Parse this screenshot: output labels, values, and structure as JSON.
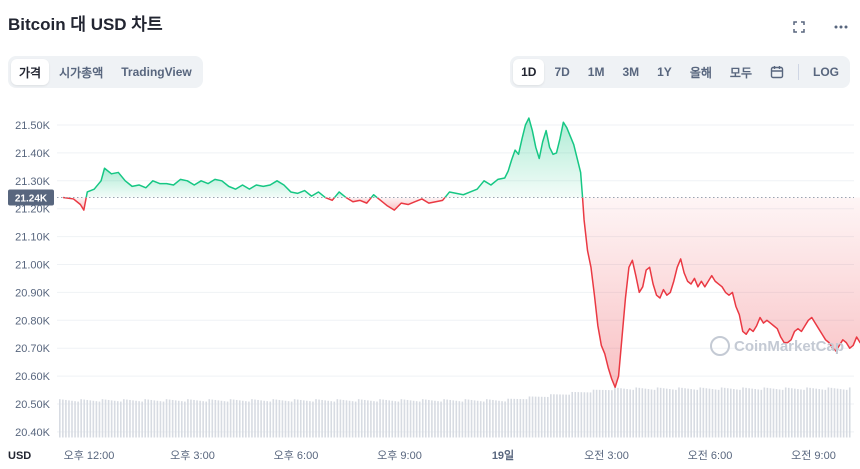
{
  "header": {
    "title": "Bitcoin 대 USD 차트",
    "icons": [
      "fullscreen-icon",
      "more-icon"
    ]
  },
  "view_tabs": [
    {
      "label": "가격",
      "active": true
    },
    {
      "label": "시가총액",
      "active": false
    },
    {
      "label": "TradingView",
      "active": false
    }
  ],
  "range_tabs": [
    {
      "label": "1D",
      "active": true
    },
    {
      "label": "7D",
      "active": false
    },
    {
      "label": "1M",
      "active": false
    },
    {
      "label": "3M",
      "active": false
    },
    {
      "label": "1Y",
      "active": false
    },
    {
      "label": "올해",
      "active": false
    },
    {
      "label": "모두",
      "active": false
    }
  ],
  "log_label": "LOG",
  "colors": {
    "up": "#16c784",
    "down": "#ea3943",
    "grid": "#eff2f5",
    "volume": "#d7dbe2",
    "label_bg": "#58667e"
  },
  "watermark": "CoinMarketCap",
  "chart_data": {
    "type": "line",
    "currency_label": "USD",
    "current_price_label": "21.24K",
    "baseline": 21240,
    "ylim": [
      20380,
      21560
    ],
    "y_ticks": [
      {
        "value": 21500,
        "label": "21.50K"
      },
      {
        "value": 21400,
        "label": "21.40K"
      },
      {
        "value": 21300,
        "label": "21.30K"
      },
      {
        "value": 21200,
        "label": "21.20K"
      },
      {
        "value": 21100,
        "label": "21.10K"
      },
      {
        "value": 21000,
        "label": "21.00K"
      },
      {
        "value": 20900,
        "label": "20.90K"
      },
      {
        "value": 20800,
        "label": "20.80K"
      },
      {
        "value": 20700,
        "label": "20.70K"
      },
      {
        "value": 20600,
        "label": "20.60K"
      },
      {
        "value": 20500,
        "label": "20.50K"
      },
      {
        "value": 20400,
        "label": "20.40K"
      }
    ],
    "xlim": [
      0,
      24.3
    ],
    "x_ticks": [
      {
        "value": 0.75,
        "label": "오후 12:00",
        "bold": false
      },
      {
        "value": 3.75,
        "label": "오후 3:00",
        "bold": false
      },
      {
        "value": 6.75,
        "label": "오후 6:00",
        "bold": false
      },
      {
        "value": 9.75,
        "label": "오후 9:00",
        "bold": false
      },
      {
        "value": 12.75,
        "label": "19일",
        "bold": true
      },
      {
        "value": 15.75,
        "label": "오전 3:00",
        "bold": false
      },
      {
        "value": 18.75,
        "label": "오전 6:00",
        "bold": false
      },
      {
        "value": 21.75,
        "label": "오전 9:00",
        "bold": false
      }
    ],
    "series": [
      {
        "points": [
          [
            0.0,
            21240
          ],
          [
            0.3,
            21235
          ],
          [
            0.5,
            21215
          ],
          [
            0.6,
            21195
          ],
          [
            0.7,
            21260
          ],
          [
            0.9,
            21270
          ],
          [
            1.1,
            21300
          ],
          [
            1.2,
            21345
          ],
          [
            1.4,
            21325
          ],
          [
            1.6,
            21330
          ],
          [
            1.8,
            21300
          ],
          [
            2.0,
            21280
          ],
          [
            2.2,
            21285
          ],
          [
            2.4,
            21275
          ],
          [
            2.6,
            21300
          ],
          [
            2.8,
            21290
          ],
          [
            3.0,
            21290
          ],
          [
            3.2,
            21285
          ],
          [
            3.4,
            21305
          ],
          [
            3.6,
            21300
          ],
          [
            3.8,
            21285
          ],
          [
            4.0,
            21300
          ],
          [
            4.2,
            21290
          ],
          [
            4.4,
            21305
          ],
          [
            4.6,
            21300
          ],
          [
            4.8,
            21280
          ],
          [
            5.0,
            21270
          ],
          [
            5.2,
            21285
          ],
          [
            5.4,
            21270
          ],
          [
            5.6,
            21285
          ],
          [
            5.8,
            21280
          ],
          [
            6.0,
            21285
          ],
          [
            6.2,
            21300
          ],
          [
            6.4,
            21285
          ],
          [
            6.6,
            21260
          ],
          [
            6.8,
            21255
          ],
          [
            7.0,
            21265
          ],
          [
            7.2,
            21245
          ],
          [
            7.4,
            21260
          ],
          [
            7.6,
            21240
          ],
          [
            7.8,
            21230
          ],
          [
            8.0,
            21260
          ],
          [
            8.2,
            21240
          ],
          [
            8.4,
            21225
          ],
          [
            8.6,
            21230
          ],
          [
            8.8,
            21220
          ],
          [
            9.0,
            21250
          ],
          [
            9.2,
            21230
          ],
          [
            9.4,
            21210
          ],
          [
            9.6,
            21195
          ],
          [
            9.8,
            21220
          ],
          [
            10.0,
            21215
          ],
          [
            10.2,
            21225
          ],
          [
            10.4,
            21235
          ],
          [
            10.6,
            21220
          ],
          [
            10.8,
            21225
          ],
          [
            11.0,
            21230
          ],
          [
            11.2,
            21260
          ],
          [
            11.4,
            21255
          ],
          [
            11.6,
            21250
          ],
          [
            11.8,
            21260
          ],
          [
            12.0,
            21270
          ],
          [
            12.2,
            21300
          ],
          [
            12.4,
            21285
          ],
          [
            12.6,
            21305
          ],
          [
            12.8,
            21310
          ],
          [
            12.9,
            21335
          ],
          [
            13.0,
            21375
          ],
          [
            13.1,
            21410
          ],
          [
            13.2,
            21395
          ],
          [
            13.3,
            21450
          ],
          [
            13.4,
            21500
          ],
          [
            13.5,
            21525
          ],
          [
            13.6,
            21480
          ],
          [
            13.7,
            21420
          ],
          [
            13.8,
            21380
          ],
          [
            13.9,
            21440
          ],
          [
            14.0,
            21480
          ],
          [
            14.1,
            21420
          ],
          [
            14.2,
            21395
          ],
          [
            14.3,
            21400
          ],
          [
            14.4,
            21450
          ],
          [
            14.5,
            21510
          ],
          [
            14.6,
            21490
          ],
          [
            14.7,
            21460
          ],
          [
            14.8,
            21430
          ],
          [
            14.9,
            21380
          ],
          [
            15.0,
            21330
          ],
          [
            15.05,
            21250
          ],
          [
            15.1,
            21160
          ],
          [
            15.2,
            21050
          ],
          [
            15.3,
            20990
          ],
          [
            15.4,
            20890
          ],
          [
            15.5,
            20780
          ],
          [
            15.6,
            20710
          ],
          [
            15.7,
            20680
          ],
          [
            15.8,
            20630
          ],
          [
            15.9,
            20590
          ],
          [
            16.0,
            20560
          ],
          [
            16.1,
            20600
          ],
          [
            16.2,
            20740
          ],
          [
            16.3,
            20880
          ],
          [
            16.4,
            20990
          ],
          [
            16.5,
            21015
          ],
          [
            16.6,
            20960
          ],
          [
            16.7,
            20900
          ],
          [
            16.8,
            20920
          ],
          [
            16.9,
            20980
          ],
          [
            17.0,
            20990
          ],
          [
            17.1,
            20930
          ],
          [
            17.2,
            20890
          ],
          [
            17.3,
            20880
          ],
          [
            17.4,
            20910
          ],
          [
            17.5,
            20890
          ],
          [
            17.6,
            20900
          ],
          [
            17.7,
            20940
          ],
          [
            17.8,
            20990
          ],
          [
            17.9,
            21020
          ],
          [
            18.0,
            20970
          ],
          [
            18.1,
            20940
          ],
          [
            18.2,
            20930
          ],
          [
            18.3,
            20950
          ],
          [
            18.4,
            20920
          ],
          [
            18.5,
            20940
          ],
          [
            18.6,
            20920
          ],
          [
            18.7,
            20940
          ],
          [
            18.8,
            20960
          ],
          [
            18.9,
            20940
          ],
          [
            19.0,
            20930
          ],
          [
            19.1,
            20920
          ],
          [
            19.2,
            20900
          ],
          [
            19.3,
            20890
          ],
          [
            19.4,
            20900
          ],
          [
            19.5,
            20850
          ],
          [
            19.6,
            20820
          ],
          [
            19.7,
            20760
          ],
          [
            19.8,
            20750
          ],
          [
            19.9,
            20770
          ],
          [
            20.0,
            20760
          ],
          [
            20.1,
            20780
          ],
          [
            20.2,
            20810
          ],
          [
            20.3,
            20790
          ],
          [
            20.4,
            20800
          ],
          [
            20.5,
            20790
          ],
          [
            20.6,
            20780
          ],
          [
            20.7,
            20770
          ],
          [
            20.8,
            20740
          ],
          [
            20.9,
            20720
          ],
          [
            21.0,
            20720
          ],
          [
            21.1,
            20730
          ],
          [
            21.2,
            20760
          ],
          [
            21.3,
            20770
          ],
          [
            21.4,
            20760
          ],
          [
            21.5,
            20780
          ],
          [
            21.6,
            20800
          ],
          [
            21.7,
            20810
          ],
          [
            21.8,
            20790
          ],
          [
            21.9,
            20770
          ],
          [
            22.0,
            20750
          ],
          [
            22.1,
            20730
          ],
          [
            22.2,
            20720
          ],
          [
            22.3,
            20700
          ],
          [
            22.4,
            20690
          ],
          [
            22.5,
            20710
          ],
          [
            22.6,
            20730
          ],
          [
            22.7,
            20720
          ],
          [
            22.8,
            20700
          ],
          [
            22.9,
            20710
          ],
          [
            23.0,
            20740
          ],
          [
            23.1,
            20720
          ],
          [
            23.2,
            20710
          ],
          [
            23.3,
            20700
          ],
          [
            23.4,
            20720
          ],
          [
            23.5,
            20740
          ],
          [
            23.6,
            20730
          ],
          [
            23.7,
            20750
          ],
          [
            23.8,
            20760
          ],
          [
            23.9,
            20740
          ],
          [
            24.0,
            20720
          ],
          [
            24.1,
            20710
          ]
        ]
      }
    ],
    "volume_base": 20380,
    "volume_level_start": 20513,
    "volume_level_end": 20555
  }
}
